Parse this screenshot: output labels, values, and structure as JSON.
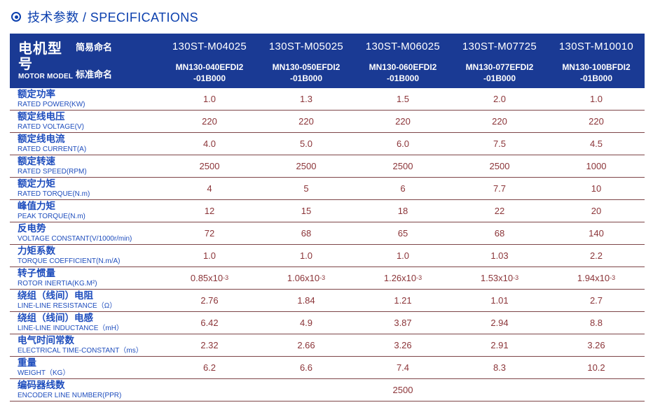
{
  "page": {
    "title": "技术参数 / SPECIFICATIONS"
  },
  "colors": {
    "header_bg": "#1a3a94",
    "title_blue": "#0c40ae",
    "label_blue": "#1e4dbd",
    "value_red": "#8b3438",
    "separator": "#7d4548"
  },
  "table": {
    "header": {
      "motor_model_cn": "电机型号",
      "motor_model_en": "MOTOR MODEL",
      "simple_name_label": "简易命名",
      "standard_name_label": "标准命名",
      "columns": [
        {
          "simple": "130ST-M04025",
          "standard_line1": "MN130-040EFDI2",
          "standard_line2": "-01B000"
        },
        {
          "simple": "130ST-M05025",
          "standard_line1": "MN130-050EFDI2",
          "standard_line2": "-01B000"
        },
        {
          "simple": "130ST-M06025",
          "standard_line1": "MN130-060EFDI2",
          "standard_line2": "-01B000"
        },
        {
          "simple": "130ST-M07725",
          "standard_line1": "MN130-077EFDI2",
          "standard_line2": "-01B000"
        },
        {
          "simple": "130ST-M10010",
          "standard_line1": "MN130-100BFDI2",
          "standard_line2": "-01B000"
        }
      ]
    },
    "rows": [
      {
        "cn": "额定功率",
        "en": "RATED POWER(KW)",
        "values": [
          "1.0",
          "1.3",
          "1.5",
          "2.0",
          "1.0"
        ]
      },
      {
        "cn": "额定线电压",
        "en": "RATED VOLTAGE(V)",
        "values": [
          "220",
          "220",
          "220",
          "220",
          "220"
        ]
      },
      {
        "cn": "额定线电流",
        "en": "RATED CURRENT(A)",
        "values": [
          "4.0",
          "5.0",
          "6.0",
          "7.5",
          "4.5"
        ]
      },
      {
        "cn": "额定转速",
        "en": "RATED SPEED(RPM)",
        "values": [
          "2500",
          "2500",
          "2500",
          "2500",
          "1000"
        ]
      },
      {
        "cn": "额定力矩",
        "en": "RATED TORQUE(N.m)",
        "values": [
          "4",
          "5",
          "6",
          "7.7",
          "10"
        ]
      },
      {
        "cn": "峰值力矩",
        "en": "PEAK TORQUE(N.m)",
        "values": [
          "12",
          "15",
          "18",
          "22",
          "20"
        ]
      },
      {
        "cn": "反电势",
        "en": "VOLTAGE CONSTANT(V/1000r/min)",
        "values": [
          "72",
          "68",
          "65",
          "68",
          "140"
        ]
      },
      {
        "cn": "力矩系数",
        "en": "TORQUE COEFFICIENT(N.m/A)",
        "values": [
          "1.0",
          "1.0",
          "1.0",
          "1.03",
          "2.2"
        ]
      },
      {
        "cn": "转子惯量",
        "en": "ROTOR INERTIA(KG.M²)",
        "values": [
          "0.85x10^-3",
          "1.06x10^-3",
          "1.26x10^-3",
          "1.53x10^-3",
          "1.94x10^-3"
        ]
      },
      {
        "cn": "绕组（线间）电阻",
        "en": "LINE-LINE RESISTANCE（Ω）",
        "values": [
          "2.76",
          "1.84",
          "1.21",
          "1.01",
          "2.7"
        ]
      },
      {
        "cn": "绕组（线间）电感",
        "en": "LINE-LINE INDUCTANCE（mH）",
        "values": [
          "6.42",
          "4.9",
          "3.87",
          "2.94",
          "8.8"
        ]
      },
      {
        "cn": "电气时间常数",
        "en": "ELECTRICAL TIME-CONSTANT（ms）",
        "values": [
          "2.32",
          "2.66",
          "3.26",
          "2.91",
          "3.26"
        ]
      },
      {
        "cn": "重量",
        "en": "WEIGHT（KG）",
        "values": [
          "6.2",
          "6.6",
          "7.4",
          "8.3",
          "10.2"
        ]
      },
      {
        "cn": "编码器线数",
        "en": "ENCODER LINE NUMBER(PPR)",
        "values": [
          "2500"
        ],
        "merged": true
      }
    ]
  }
}
